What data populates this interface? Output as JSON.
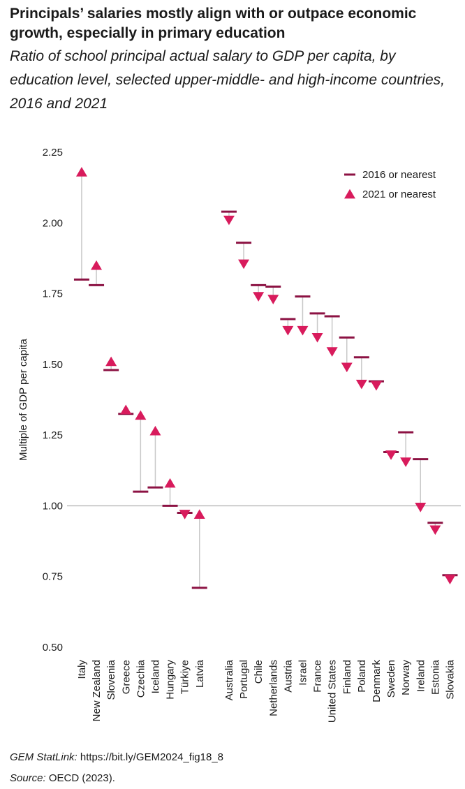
{
  "chart_data": {
    "type": "dumbbell",
    "title": "Principals’ salaries mostly align with or outpace economic growth, especially in primary education",
    "subtitle": "Ratio of school principal actual salary to GDP per capita, by education level, selected upper-middle- and high-income countries, 2016 and 2021",
    "y_label": "Multiple of GDP per capita",
    "categories": [
      "Italy",
      "New Zealand",
      "Slovenia",
      "Greece",
      "Czechia",
      "Iceland",
      "Hungary",
      "Türkiye",
      "Latvia",
      null,
      "Australia",
      "Portugal",
      "Chile",
      "Netherlands",
      "Austria",
      "Israel",
      "France",
      "United States",
      "Finland",
      "Poland",
      "Denmark",
      "Sweden",
      "Norway",
      "Ireland",
      "Estonia",
      "Slovakia"
    ],
    "series": [
      {
        "name": "2016 or nearest",
        "color": "#8c1243",
        "values": [
          1.8,
          1.78,
          1.48,
          1.325,
          1.05,
          1.065,
          1.0,
          0.975,
          0.71,
          null,
          2.04,
          1.93,
          1.78,
          1.775,
          1.66,
          1.74,
          1.68,
          1.67,
          1.595,
          1.525,
          1.44,
          1.19,
          1.26,
          1.165,
          0.94,
          0.755
        ]
      },
      {
        "name": "2021 or nearest",
        "color": "#d81b5c",
        "values": [
          2.18,
          1.85,
          1.51,
          1.34,
          1.32,
          1.265,
          1.08,
          0.97,
          0.97,
          null,
          2.01,
          1.855,
          1.74,
          1.73,
          1.62,
          1.62,
          1.595,
          1.545,
          1.49,
          1.43,
          1.425,
          1.18,
          1.155,
          0.995,
          0.915,
          0.74
        ]
      }
    ],
    "ylim": [
      0.5,
      2.25
    ],
    "yticks": [
      {
        "value": 0.5,
        "label": "0.50"
      },
      {
        "value": 0.75,
        "label": "0.75"
      },
      {
        "value": 1,
        "label": "1.00"
      },
      {
        "value": 1.25,
        "label": "1.25"
      },
      {
        "value": 1.5,
        "label": "1.50"
      },
      {
        "value": 1.75,
        "label": "1.75"
      },
      {
        "value": 2,
        "label": "2.00"
      },
      {
        "value": 2.25,
        "label": "2.25"
      }
    ],
    "baseline": 1,
    "grid": false,
    "legend": "upper right",
    "notes": [
      {
        "label": "GEM StatLink:",
        "text": "https://bit.ly/GEM2024_fig18_8"
      },
      {
        "label": "Source:",
        "text": "OECD (2023)."
      }
    ]
  }
}
